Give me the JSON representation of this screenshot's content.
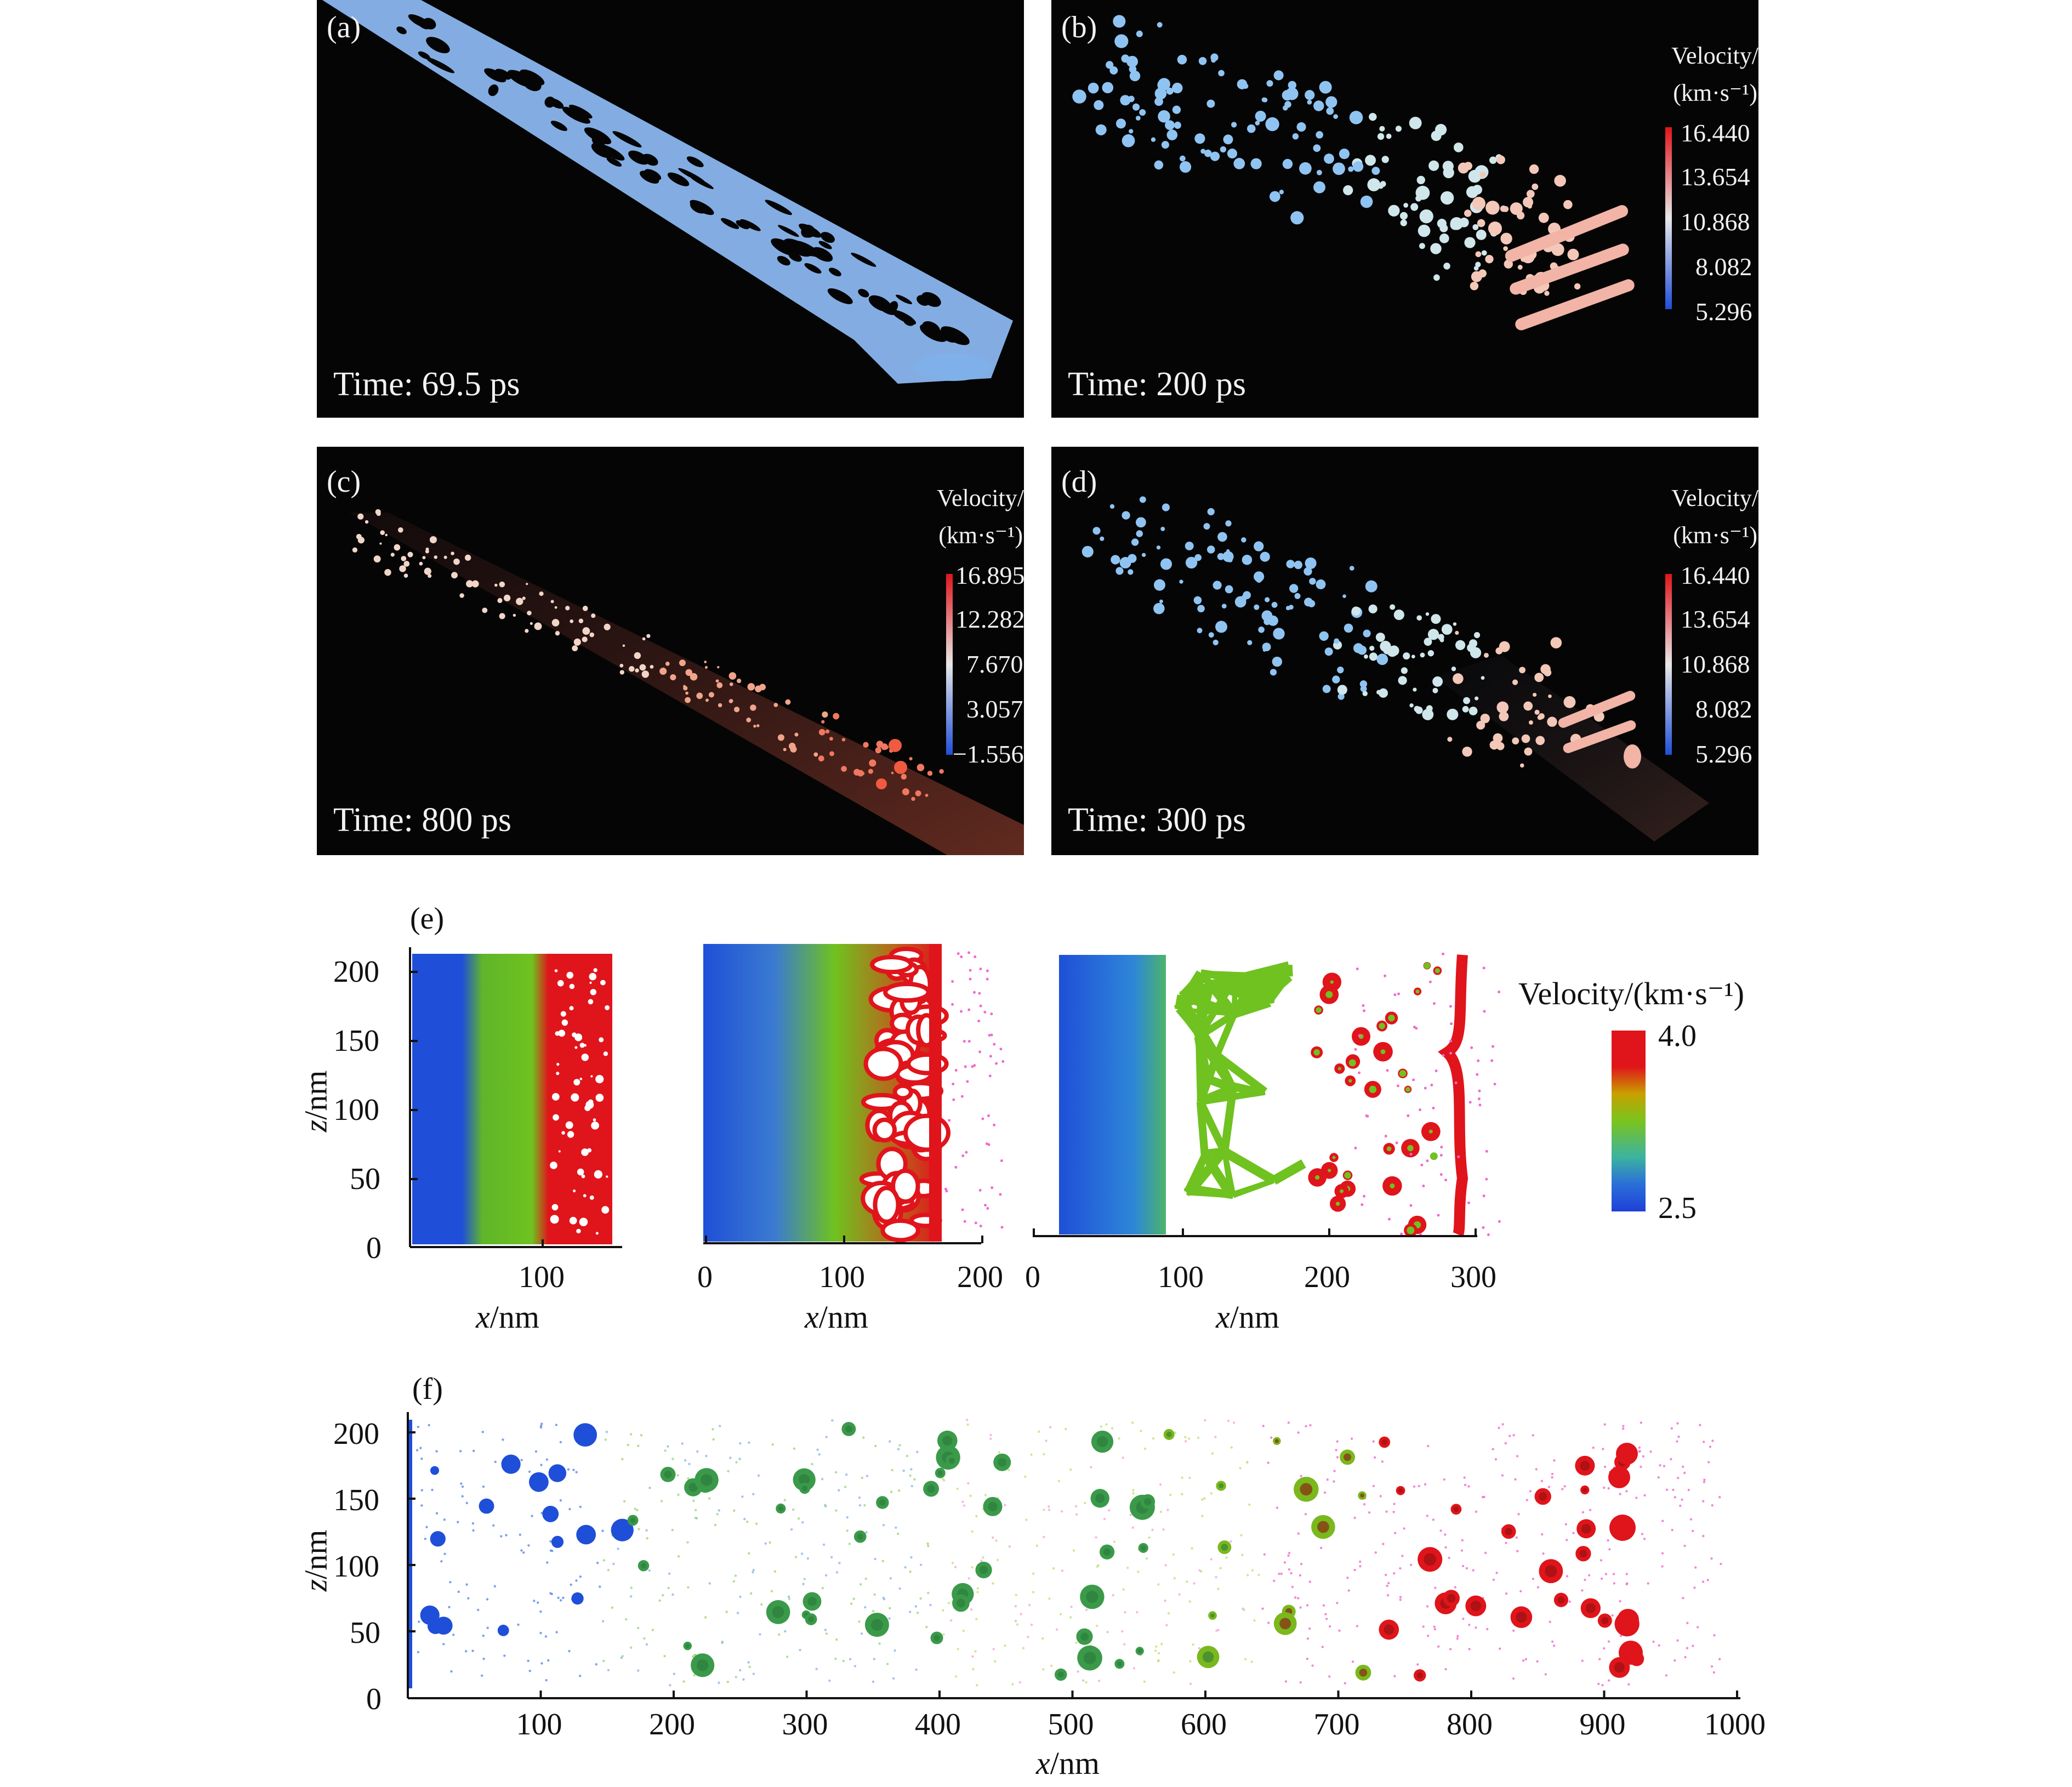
{
  "panels": {
    "a": {
      "label": "(a)",
      "time": "Time: 69.5 ps"
    },
    "b": {
      "label": "(b)",
      "time": "Time: 200 ps",
      "colorbar": {
        "title1": "Velocity/",
        "title2": "(km·s⁻¹)",
        "ticks": [
          "16.440",
          "13.654",
          "10.868",
          "8.082",
          "5.296"
        ]
      }
    },
    "c": {
      "label": "(c)",
      "time": "Time: 800 ps",
      "colorbar": {
        "title1": "Velocity/",
        "title2": "(km·s⁻¹)",
        "ticks": [
          "16.895",
          "12.282",
          "7.670",
          "3.057",
          "−1.556"
        ]
      }
    },
    "d": {
      "label": "(d)",
      "time": "Time: 300 ps",
      "colorbar": {
        "title1": "Velocity/",
        "title2": "(km·s⁻¹)",
        "ticks": [
          "16.440",
          "13.654",
          "10.868",
          "8.082",
          "5.296"
        ]
      }
    }
  },
  "panel_e": {
    "label": "(e)",
    "z_ticks": [
      "200",
      "150",
      "100",
      "50",
      "0"
    ],
    "z_label": "z/nm",
    "x_label": "x/nm",
    "sub1_x_ticks": [
      "100"
    ],
    "sub2_x_ticks": [
      "0",
      "100",
      "200"
    ],
    "sub3_x_ticks": [
      "0",
      "100",
      "200",
      "300"
    ],
    "colorbar": {
      "title": "Velocity/(km·s⁻¹)",
      "max": "4.0",
      "min": "2.5"
    }
  },
  "panel_f": {
    "label": "(f)",
    "z_ticks": [
      "200",
      "150",
      "100",
      "50",
      "0"
    ],
    "x_ticks": [
      "100",
      "200",
      "300",
      "400",
      "500",
      "600",
      "700",
      "800",
      "900",
      "1000"
    ],
    "z_label": "z/nm",
    "x_label": "x/nm"
  },
  "colors": {
    "blue": "#1f4fd8",
    "green": "#6fc21f",
    "red": "#e0141b",
    "magenta": "#f06ad0",
    "panel_bg": "#050505"
  }
}
